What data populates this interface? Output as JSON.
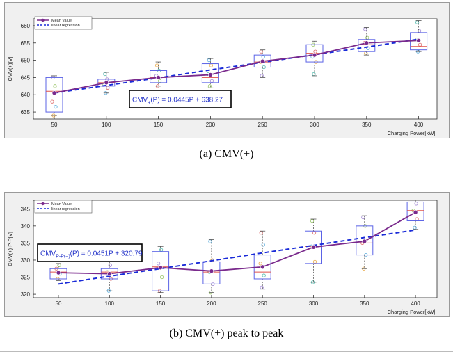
{
  "chart_data": [
    {
      "type": "box",
      "panel_caption": "(a)  CMV(+)",
      "xlabel": "Charging Power[kW]",
      "ylabel": "CMV(+)[V]",
      "categories": [
        "50",
        "100",
        "150",
        "200",
        "250",
        "300",
        "350",
        "400"
      ],
      "yticks": [
        635,
        640,
        645,
        650,
        655,
        660
      ],
      "ylim": [
        633,
        662
      ],
      "grid": false,
      "legend_position": "top-left",
      "legend": {
        "mean": "Mean Value",
        "regression": "linear regression"
      },
      "equation": {
        "prefix": "CMV",
        "subscript": "+",
        "suffix": "(P) = 0.0445P + 638.27"
      },
      "boxes": [
        {
          "min": 634.0,
          "q1": 635.0,
          "median": 641.0,
          "q3": 645.0,
          "max": 645.5
        },
        {
          "min": 640.5,
          "q1": 642.5,
          "median": 643.5,
          "q3": 644.5,
          "max": 646.5
        },
        {
          "min": 642.5,
          "q1": 643.5,
          "median": 645.0,
          "q3": 647.0,
          "max": 649.5
        },
        {
          "min": 642.0,
          "q1": 643.5,
          "median": 645.0,
          "q3": 649.0,
          "max": 650.5
        },
        {
          "min": 645.0,
          "q1": 648.0,
          "median": 649.5,
          "q3": 651.5,
          "max": 653.0
        },
        {
          "min": 645.5,
          "q1": 649.5,
          "median": 652.0,
          "q3": 654.5,
          "max": 655.5
        },
        {
          "min": 651.5,
          "q1": 652.5,
          "median": 654.5,
          "q3": 656.0,
          "max": 659.5
        },
        {
          "min": 652.5,
          "q1": 653.0,
          "median": 654.0,
          "q3": 658.0,
          "max": 661.5
        }
      ],
      "series": [
        {
          "name": "Mean Value",
          "values": [
            640.5,
            643.5,
            645.0,
            645.8,
            649.7,
            651.5,
            655.0,
            655.7
          ]
        },
        {
          "name": "linear regression",
          "values": [
            640.5,
            642.7,
            644.9,
            647.2,
            649.4,
            651.6,
            653.8,
            656.1
          ]
        }
      ],
      "scatter": [
        [
          634.0,
          636.5,
          638.0,
          642.5,
          645.0
        ],
        [
          640.5,
          642.0,
          643.0,
          644.5,
          646.0
        ],
        [
          642.5,
          644.0,
          645.5,
          647.0,
          648.5
        ],
        [
          642.5,
          644.0,
          646.0,
          648.5,
          650.0
        ],
        [
          645.5,
          648.0,
          649.5,
          651.0,
          652.5
        ],
        [
          646.0,
          649.5,
          651.0,
          652.5,
          654.5
        ],
        [
          652.0,
          653.5,
          655.0,
          656.5,
          659.0
        ],
        [
          652.5,
          654.5,
          656.0,
          658.5,
          661.0
        ]
      ]
    },
    {
      "type": "box",
      "panel_caption": "(b)  CMV(+)  peak  to  peak",
      "xlabel": "Charging Power[kW]",
      "ylabel": "CMV(+) P-P[V]",
      "categories": [
        "50",
        "100",
        "150",
        "200",
        "250",
        "300",
        "350",
        "400"
      ],
      "yticks": [
        320,
        325,
        330,
        335,
        340,
        345
      ],
      "ylim": [
        319,
        347.5
      ],
      "grid": false,
      "legend_position": "top-left",
      "legend": {
        "mean": "Mean Value",
        "regression": "linear regression"
      },
      "equation": {
        "prefix": "CMV",
        "subscript": "P-P(+)",
        "suffix": "(P) = 0.0451P + 320.79"
      },
      "boxes": [
        {
          "min": 324.0,
          "q1": 324.5,
          "median": 326.5,
          "q3": 327.5,
          "max": 329.0
        },
        {
          "min": 321.0,
          "q1": 324.5,
          "median": 326.5,
          "q3": 327.5,
          "max": 329.5
        },
        {
          "min": 320.5,
          "q1": 321.0,
          "median": 328.0,
          "q3": 332.5,
          "max": 334.0
        },
        {
          "min": 320.5,
          "q1": 323.0,
          "median": 326.5,
          "q3": 329.5,
          "max": 336.0
        },
        {
          "min": 321.5,
          "q1": 324.5,
          "median": 326.5,
          "q3": 331.5,
          "max": 338.5
        },
        {
          "min": 323.5,
          "q1": 329.0,
          "median": 334.0,
          "q3": 338.5,
          "max": 342.0
        },
        {
          "min": 327.5,
          "q1": 331.5,
          "median": 335.0,
          "q3": 340.0,
          "max": 343.0
        },
        {
          "min": 339.0,
          "q1": 341.5,
          "median": 344.5,
          "q3": 347.0,
          "max": 347.5
        }
      ],
      "series": [
        {
          "name": "Mean Value",
          "values": [
            326.3,
            326.0,
            327.8,
            326.8,
            328.0,
            333.8,
            335.5,
            344.0
          ]
        },
        {
          "name": "linear regression",
          "values": [
            323.0,
            325.3,
            327.5,
            329.8,
            332.1,
            334.3,
            336.6,
            338.8
          ]
        }
      ],
      "scatter": [
        [
          324.5,
          326.0,
          327.5,
          328.5
        ],
        [
          321.0,
          324.5,
          326.5,
          328.5
        ],
        [
          321.0,
          325.0,
          329.0,
          333.0
        ],
        [
          320.5,
          323.0,
          326.5,
          330.0,
          335.5
        ],
        [
          322.0,
          325.5,
          329.0,
          334.5,
          338.0
        ],
        [
          323.5,
          329.5,
          334.0,
          338.0,
          341.5
        ],
        [
          327.5,
          331.5,
          335.0,
          340.0,
          342.5
        ],
        [
          339.5,
          342.0,
          344.5,
          346.5
        ]
      ]
    }
  ]
}
